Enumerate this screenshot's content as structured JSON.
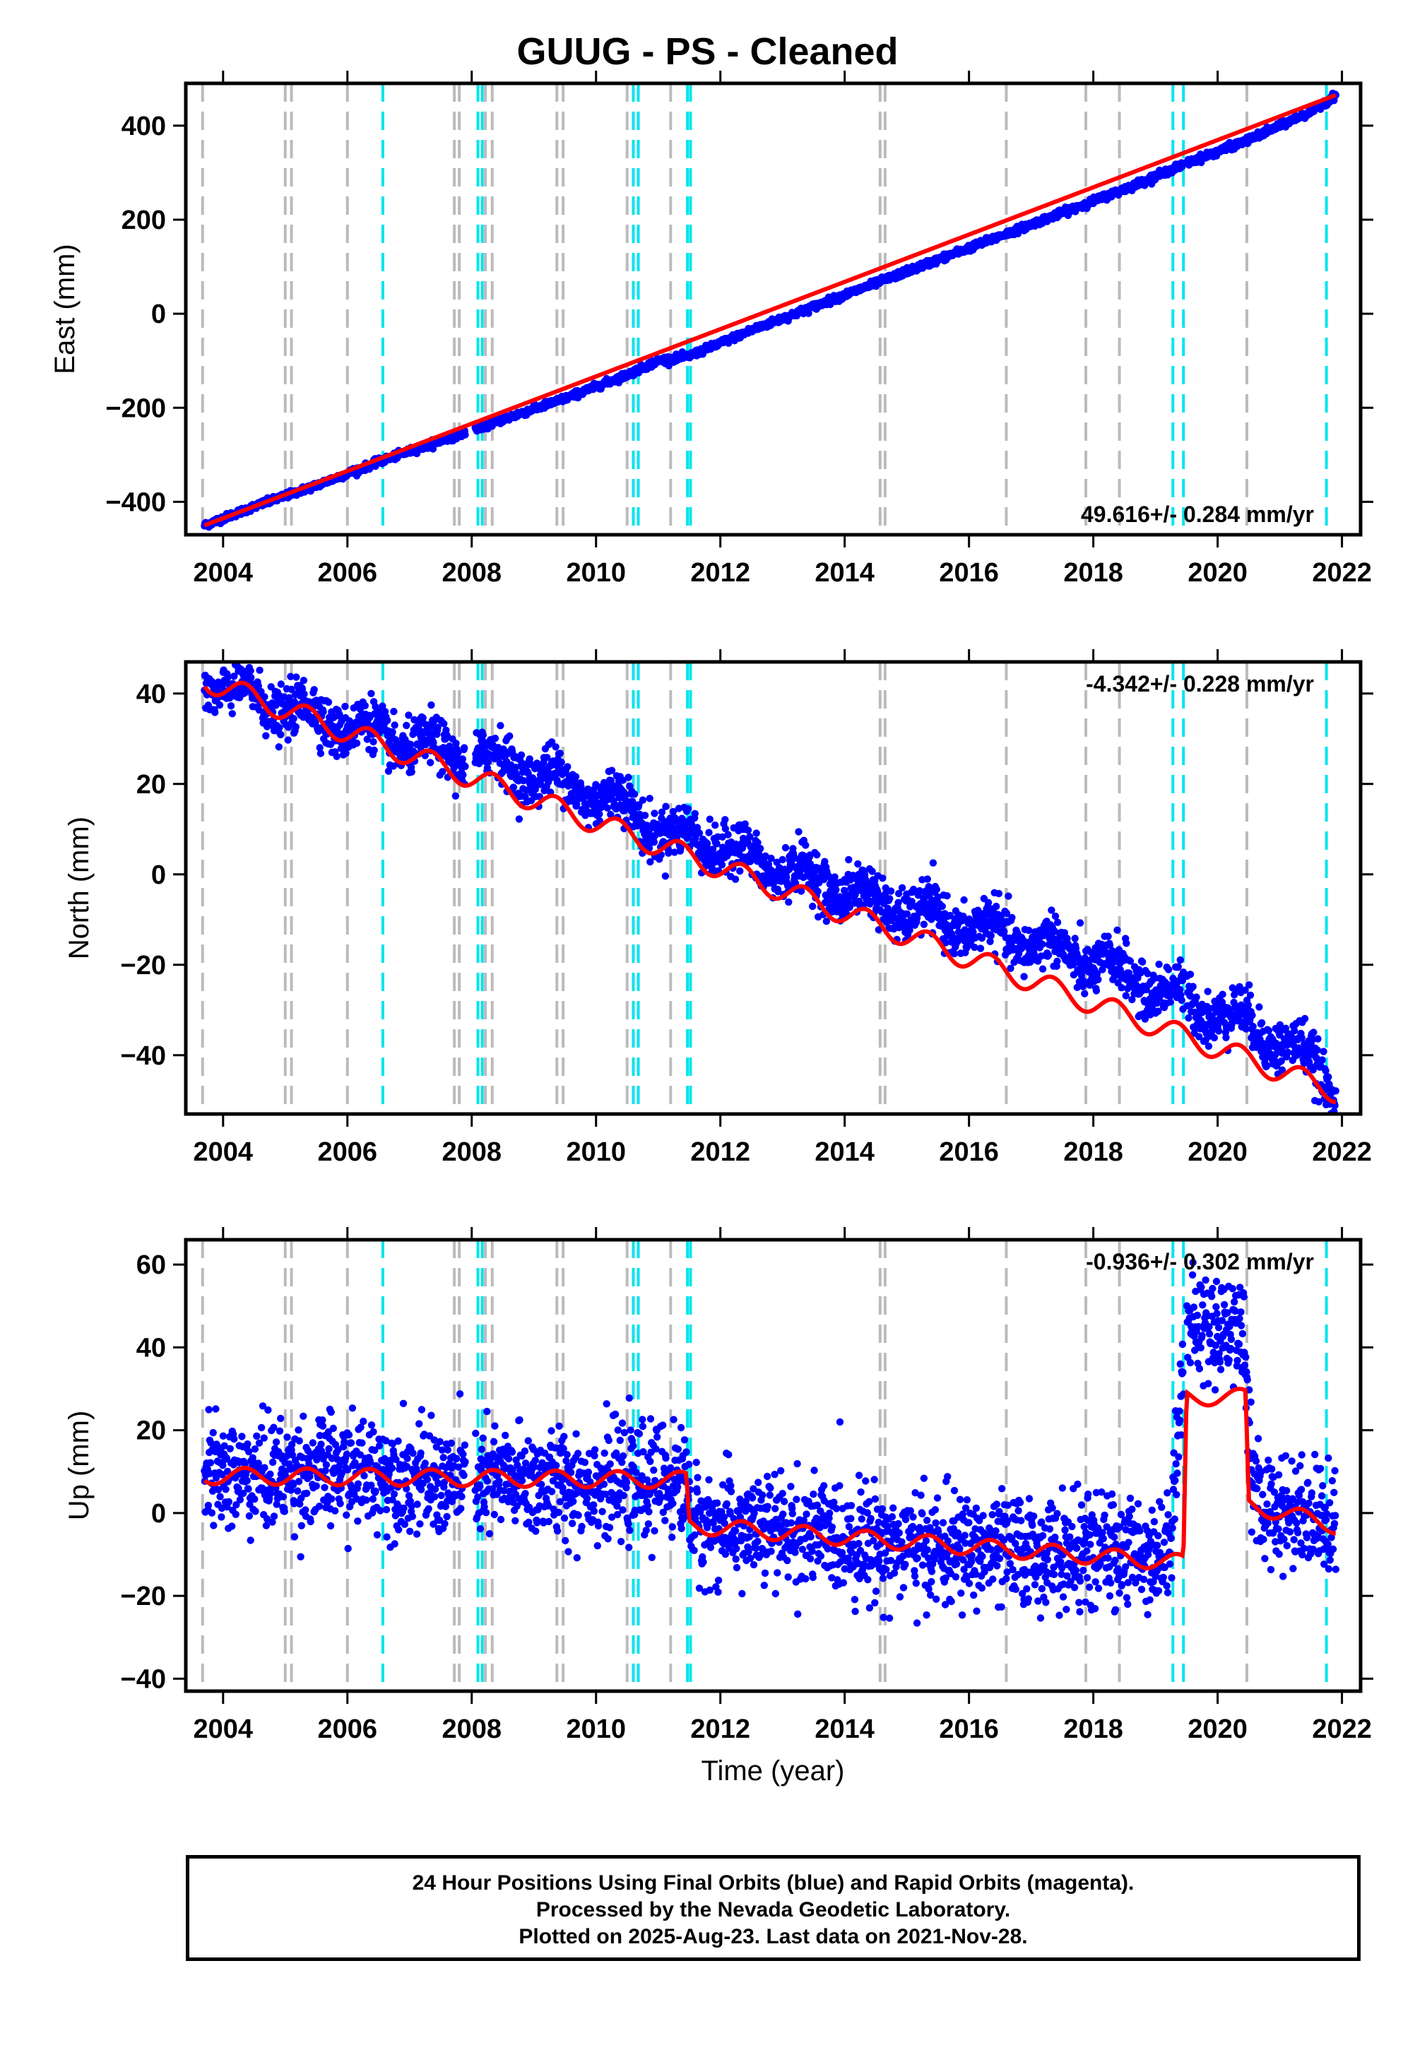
{
  "figure": {
    "title": "GUUG  - PS - Cleaned",
    "xlabel": "Time (year)",
    "footer": [
      "24 Hour Positions Using Final Orbits (blue) and Rapid Orbits (magenta).",
      "Processed by the Nevada Geodetic Laboratory.",
      "Plotted on 2025-Aug-23. Last data on 2021-Nov-28."
    ],
    "colors": {
      "data": "#0000ff",
      "model": "#ff0000",
      "offset_grey": "#bbbbbb",
      "offset_cyan": "#00e5ee",
      "frame": "#000000"
    },
    "offsets_grey": [
      2003.67,
      2005.0,
      2005.1,
      2006.0,
      2007.72,
      2007.8,
      2008.22,
      2008.33,
      2009.37,
      2009.47,
      2010.5,
      2011.2,
      2014.57,
      2014.65,
      2016.6,
      2017.88,
      2018.42,
      2020.47
    ],
    "offsets_cyan": [
      2006.57,
      2008.1,
      2008.17,
      2010.6,
      2010.68,
      2011.47,
      2011.52,
      2019.28,
      2019.45,
      2021.75
    ]
  },
  "chart_data": [
    {
      "type": "scatter",
      "ylabel": "East (mm)",
      "xlim": [
        2003.4,
        2022.3
      ],
      "ylim": [
        -470,
        490
      ],
      "xticks": [
        "2004",
        "2006",
        "2008",
        "2010",
        "2012",
        "2014",
        "2016",
        "2018",
        "2020",
        "2022"
      ],
      "yticks": [
        "400",
        "200",
        "0",
        "−200",
        "−400"
      ],
      "ytick_values": [
        400,
        200,
        0,
        -200,
        -400
      ],
      "rate_label": "49.616+/- 0.284 mm/yr",
      "rate_position": "bottom-right",
      "series": [
        {
          "x": [
            2003.7,
            2004.5,
            2005.5,
            2006.5,
            2007.5,
            2008.5,
            2009.5,
            2010.5,
            2011.0,
            2011.5,
            2012.5,
            2013.5,
            2014.5,
            2015.5,
            2016.5,
            2017.5,
            2018.5,
            2019.5,
            2020.5,
            2021.5,
            2021.9
          ],
          "y": [
            -450,
            -410,
            -365,
            -315,
            -270,
            -225,
            -180,
            -130,
            -100,
            -90,
            -35,
            15,
            65,
            115,
            165,
            215,
            265,
            320,
            370,
            430,
            465
          ]
        }
      ],
      "model": {
        "x": [
          2003.7,
          2021.9
        ],
        "y": [
          -450,
          465
        ]
      }
    },
    {
      "type": "scatter",
      "ylabel": "North (mm)",
      "xlim": [
        2003.4,
        2022.3
      ],
      "ylim": [
        -53,
        47
      ],
      "xticks": [
        "2004",
        "2006",
        "2008",
        "2010",
        "2012",
        "2014",
        "2016",
        "2018",
        "2020",
        "2022"
      ],
      "yticks": [
        "40",
        "20",
        "0",
        "−20",
        "−40"
      ],
      "ytick_values": [
        40,
        20,
        0,
        -20,
        -40
      ],
      "rate_label": "-4.342+/- 0.228 mm/yr",
      "rate_position": "top-right",
      "series": [
        {
          "x": [
            2003.7,
            2004.5,
            2005.5,
            2006.5,
            2007.5,
            2008.5,
            2009.5,
            2010.5,
            2011.3,
            2011.5,
            2012.5,
            2013.5,
            2014.5,
            2015.5,
            2016.5,
            2017.5,
            2018.5,
            2019.5,
            2020.5,
            2021.5,
            2021.9
          ],
          "y": [
            43,
            39,
            35,
            31,
            27,
            25,
            20,
            15,
            7,
            9,
            3,
            -1,
            -6,
            -10,
            -13,
            -17,
            -22,
            -28,
            -33,
            -41,
            -48
          ]
        }
      ],
      "model": {
        "x": [
          2003.7,
          2021.9
        ],
        "y": [
          43,
          -48
        ],
        "annual_amplitude": 2.5
      }
    },
    {
      "type": "scatter",
      "ylabel": "Up (mm)",
      "xlim": [
        2003.4,
        2022.3
      ],
      "ylim": [
        -43,
        66
      ],
      "xticks": [
        "2004",
        "2006",
        "2008",
        "2010",
        "2012",
        "2014",
        "2016",
        "2018",
        "2020",
        "2022"
      ],
      "yticks": [
        "60",
        "40",
        "20",
        "0",
        "−20",
        "−40"
      ],
      "ytick_values": [
        60,
        40,
        20,
        0,
        -20,
        -40
      ],
      "rate_label": "-0.936+/- 0.302 mm/yr",
      "rate_position": "top-right",
      "series": [
        {
          "x": [
            2003.7,
            2004.5,
            2005.5,
            2006.5,
            2007.5,
            2008.5,
            2009.5,
            2010.5,
            2011.4,
            2011.6,
            2012.5,
            2013.5,
            2014.5,
            2015.5,
            2016.5,
            2017.5,
            2018.5,
            2019.2,
            2019.5,
            2020.0,
            2020.4,
            2020.6,
            2021.5,
            2021.9
          ],
          "y": [
            9,
            9,
            10,
            10,
            7,
            8,
            7,
            7,
            8,
            -3,
            -4,
            -5,
            -7,
            -9,
            -9,
            -10,
            -9,
            -10,
            45,
            45,
            45,
            2,
            0,
            -3
          ]
        }
      ],
      "model": {
        "x": [
          2003.7,
          2011.45,
          2011.5,
          2019.45,
          2019.5,
          2020.45,
          2020.5,
          2021.9
        ],
        "y": [
          9,
          8,
          -3,
          -12,
          28,
          28,
          2,
          -3
        ],
        "annual_amplitude": 2
      }
    }
  ]
}
